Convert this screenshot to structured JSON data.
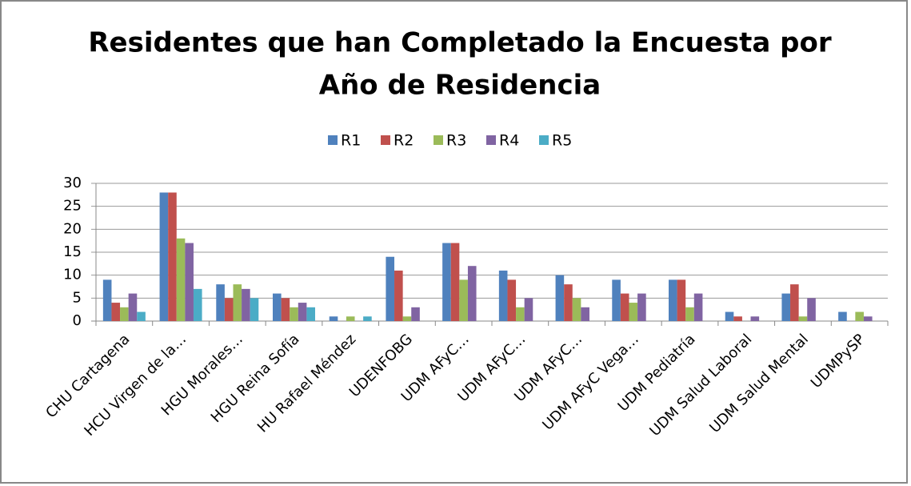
{
  "chart_data": {
    "type": "bar",
    "title": [
      "Residentes que han Completado la Encuesta por",
      "Año de Residencia"
    ],
    "categories": [
      "CHU Cartagena",
      "HCU Virgen de la…",
      "HGU Morales…",
      "HGU Reina Sofía",
      "HU Rafael Méndez",
      "UDENFOBG",
      "UDM AFyC…",
      "UDM AFyC…",
      "UDM AFyC…",
      "UDM AFyC Vega…",
      "UDM Pediatría",
      "UDM Salud Laboral",
      "UDM Salud Mental",
      "UDMPySP"
    ],
    "series": [
      {
        "name": "R1",
        "color": "#4f81bd",
        "values": [
          9,
          28,
          8,
          6,
          1,
          14,
          17,
          11,
          10,
          9,
          9,
          2,
          6,
          2
        ]
      },
      {
        "name": "R2",
        "color": "#c0504d",
        "values": [
          4,
          28,
          5,
          5,
          0,
          11,
          17,
          9,
          8,
          6,
          9,
          1,
          8,
          0
        ]
      },
      {
        "name": "R3",
        "color": "#9bbb59",
        "values": [
          3,
          18,
          8,
          3,
          1,
          1,
          9,
          3,
          5,
          4,
          3,
          0,
          1,
          2
        ]
      },
      {
        "name": "R4",
        "color": "#8064a2",
        "values": [
          6,
          17,
          7,
          4,
          0,
          3,
          12,
          5,
          3,
          6,
          6,
          1,
          5,
          1
        ]
      },
      {
        "name": "R5",
        "color": "#4bacc6",
        "values": [
          2,
          7,
          5,
          3,
          1,
          0,
          0,
          0,
          0,
          0,
          0,
          0,
          0,
          0
        ]
      }
    ],
    "ylim": [
      0,
      30
    ],
    "yticks": [
      0,
      5,
      10,
      15,
      20,
      25,
      30
    ],
    "grid": true,
    "legend": "top"
  }
}
